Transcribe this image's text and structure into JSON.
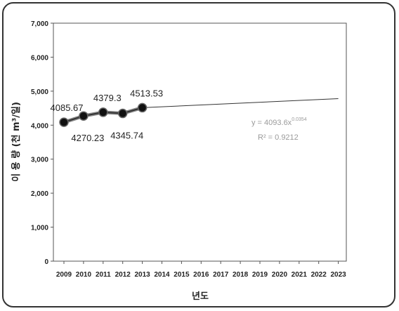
{
  "chart_data": {
    "type": "line",
    "title": "",
    "xlabel": "년도",
    "ylabel": "이 용 량 (천 m³/일)",
    "ylim": [
      0,
      7000
    ],
    "yticks": [
      "0",
      "1,000",
      "2,000",
      "3,000",
      "4,000",
      "5,000",
      "6,000",
      "7,000"
    ],
    "ytick_values": [
      0,
      1000,
      2000,
      3000,
      4000,
      5000,
      6000,
      7000
    ],
    "xticks": [
      "2009",
      "2010",
      "2011",
      "2012",
      "2013",
      "2014",
      "2015",
      "2016",
      "2017",
      "2018",
      "2019",
      "2020",
      "2021",
      "2022",
      "2023"
    ],
    "grid": false,
    "legend": "none",
    "series": [
      {
        "type": "line-markers",
        "x": [
          2009,
          2010,
          2011,
          2012,
          2013
        ],
        "values": [
          4085.67,
          4270.23,
          4379.3,
          4345.74,
          4513.53
        ],
        "labels": [
          "4085.67",
          "4270.23",
          "4379.3",
          "4345.74",
          "4513.53"
        ],
        "label_side": [
          "above",
          "below",
          "above",
          "below",
          "above"
        ],
        "color": "#333333"
      },
      {
        "type": "trendline",
        "x": [
          2013,
          2023
        ],
        "values": [
          4513.53,
          4780
        ],
        "color": "#333333"
      }
    ],
    "annotation": {
      "equation_prefix": "y = 4093.6x",
      "equation_exponent": "0.0354",
      "r2": "R² = 0.9212"
    }
  }
}
